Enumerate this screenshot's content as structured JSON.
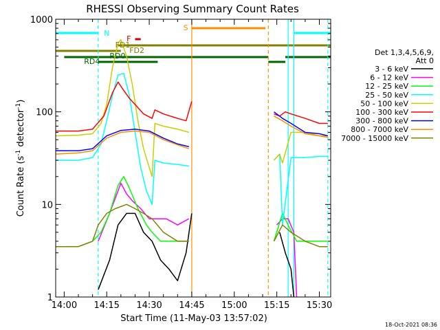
{
  "chart_data": {
    "type": "line",
    "title": "RHESSI Observing Summary Count Rates",
    "xlabel": "Start Time (11-May-03 13:57:02)",
    "ylabel": "Count Rate (s⁻¹ detector⁻¹)",
    "ylabel_main": "Count Rate (s",
    "ylabel_sup1": "-1",
    "ylabel_mid": " detector",
    "ylabel_sup2": "-1",
    "ylabel_end": ")",
    "yscale": "log",
    "ylim": [
      1,
      1000
    ],
    "xlim": [
      "13:57",
      "15:34"
    ],
    "x_ticks": [
      "14:00",
      "14:15",
      "14:30",
      "14:45",
      "15:00",
      "15:15",
      "15:30"
    ],
    "y_ticks": [
      "1",
      "10",
      "100",
      "1000"
    ],
    "legend_header": [
      "Det 1,3,4,5,6,9,",
      "Att 0"
    ],
    "legend_placement": "right",
    "footer": "18-Oct-2021 08:36",
    "series": [
      {
        "name": "3 - 6 keV",
        "color": "#000000",
        "x": [
          "14:12",
          "14:16",
          "14:19",
          "14:22",
          "14:25",
          "14:28",
          "14:31",
          "14:34",
          "14:37",
          "14:40",
          "14:43",
          "14:45",
          "15:16",
          "15:18",
          "15:20",
          "15:21"
        ],
        "y": [
          1.2,
          2.5,
          6,
          8,
          8,
          5,
          4,
          2.5,
          2,
          1.5,
          3,
          8,
          5,
          3,
          2,
          1
        ]
      },
      {
        "name": "6 - 12 keV",
        "color": "#ff00ff",
        "x": [
          "14:12",
          "14:16",
          "14:19",
          "14:20",
          "14:22",
          "14:24",
          "14:27",
          "14:30",
          "14:33",
          "14:36",
          "14:40",
          "14:44",
          "15:15",
          "15:17",
          "15:19",
          "15:21",
          "15:22"
        ],
        "y": [
          4,
          8,
          14,
          17,
          13,
          11,
          9,
          7,
          7,
          7,
          6,
          7,
          6,
          7,
          7,
          5,
          1
        ]
      },
      {
        "name": "12 - 25 keV",
        "color": "#00ff00",
        "x": [
          "13:57",
          "14:05",
          "14:10",
          "14:13",
          "14:16",
          "14:19",
          "14:21",
          "14:23",
          "14:26",
          "14:29",
          "14:31",
          "14:34",
          "14:38",
          "14:42",
          "14:44",
          "15:14",
          "15:17",
          "15:19",
          "15:22",
          "15:26",
          "15:30",
          "15:33"
        ],
        "y": [
          3.5,
          3.5,
          4,
          5,
          8,
          16,
          20,
          15,
          9,
          6,
          5,
          4,
          4,
          4,
          4,
          4,
          8,
          6,
          4,
          4,
          4,
          4
        ]
      },
      {
        "name": "25 - 50 keV",
        "color": "#00ffff",
        "x": [
          "13:57",
          "14:05",
          "14:10",
          "14:13",
          "14:15",
          "14:17",
          "14:19",
          "14:21",
          "14:23",
          "14:25",
          "14:27",
          "14:29",
          "14:31",
          "14:32",
          "14:35",
          "14:40",
          "14:44",
          "15:14",
          "15:16",
          "15:17",
          "15:20",
          "15:25",
          "15:30",
          "15:33"
        ],
        "y": [
          30,
          30,
          32,
          45,
          80,
          150,
          250,
          260,
          150,
          60,
          25,
          14,
          10,
          30,
          28,
          27,
          26,
          30,
          35,
          6,
          32,
          32,
          33,
          33
        ]
      },
      {
        "name": "50 - 100 keV",
        "color": "#cccc00",
        "x": [
          "13:57",
          "14:05",
          "14:10",
          "14:13",
          "14:15",
          "14:17",
          "14:19",
          "14:20",
          "14:22",
          "14:24",
          "14:26",
          "14:28",
          "14:30",
          "14:31",
          "14:32",
          "14:35",
          "14:40",
          "14:44",
          "15:14",
          "15:16",
          "15:17",
          "15:20",
          "15:25",
          "15:30",
          "15:33"
        ],
        "y": [
          55,
          56,
          58,
          75,
          120,
          300,
          550,
          600,
          400,
          200,
          80,
          40,
          25,
          20,
          75,
          70,
          65,
          60,
          30,
          35,
          28,
          60,
          60,
          55,
          55
        ]
      },
      {
        "name": "100 - 300 keV",
        "color": "#ff0000",
        "x": [
          "13:57",
          "14:05",
          "14:10",
          "14:14",
          "14:17",
          "14:19",
          "14:21",
          "14:23",
          "14:25",
          "14:28",
          "14:31",
          "14:32",
          "14:35",
          "14:40",
          "14:43",
          "14:45",
          "15:14",
          "15:16",
          "15:18",
          "15:20",
          "15:25",
          "15:30",
          "15:33"
        ],
        "y": [
          62,
          62,
          65,
          90,
          160,
          210,
          170,
          140,
          120,
          95,
          85,
          105,
          95,
          85,
          80,
          130,
          95,
          90,
          100,
          95,
          85,
          75,
          75
        ]
      },
      {
        "name": "300 - 800 keV",
        "color": "#0000ff",
        "x": [
          "13:57",
          "14:05",
          "14:10",
          "14:15",
          "14:20",
          "14:25",
          "14:30",
          "14:35",
          "14:40",
          "14:44",
          "15:14",
          "15:17",
          "15:20",
          "15:25",
          "15:30",
          "15:33"
        ],
        "y": [
          38,
          38,
          40,
          55,
          63,
          65,
          62,
          52,
          45,
          42,
          100,
          85,
          75,
          60,
          58,
          55
        ]
      },
      {
        "name": "800 - 7000 keV",
        "color": "#ff8c00",
        "x": [
          "13:57",
          "14:05",
          "14:10",
          "14:15",
          "14:20",
          "14:25",
          "14:30",
          "14:35",
          "14:40",
          "14:44",
          "15:14",
          "15:17",
          "15:20",
          "15:25",
          "15:30",
          "15:33"
        ],
        "y": [
          35,
          36,
          38,
          52,
          60,
          62,
          60,
          50,
          44,
          40,
          90,
          80,
          70,
          58,
          55,
          53
        ]
      },
      {
        "name": "7000 - 15000 keV",
        "color": "#808000",
        "x": [
          "13:57",
          "14:05",
          "14:10",
          "14:12",
          "14:15",
          "14:18",
          "14:22",
          "14:25",
          "14:28",
          "14:31",
          "14:35",
          "14:40",
          "14:44",
          "15:14",
          "15:17",
          "15:20",
          "15:25",
          "15:30",
          "15:33"
        ],
        "y": [
          3.5,
          3.5,
          4,
          6,
          8,
          9,
          10,
          9,
          8,
          7,
          5,
          4,
          4,
          4,
          6,
          5,
          4,
          3.5,
          3.5
        ]
      }
    ],
    "annotations": [
      {
        "label": "N",
        "color": "#00ffff"
      },
      {
        "label": "S",
        "color": "#ff8c00"
      },
      {
        "label": "F",
        "color": "#cc0000"
      },
      {
        "label": "FD1",
        "color": "#808000"
      },
      {
        "label": "FD2",
        "color": "#808000"
      },
      {
        "label": "RD0",
        "color": "#006400"
      },
      {
        "label": "RD4",
        "color": "#006400"
      }
    ]
  }
}
